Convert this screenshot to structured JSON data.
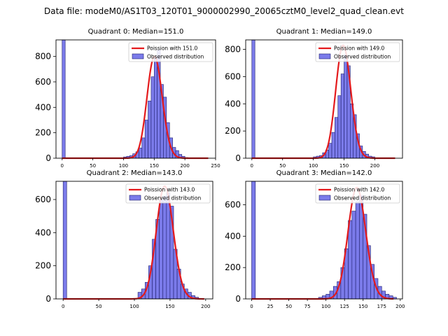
{
  "figure_title": "Data file: modeM0/AS1T03_120T01_9000002990_20065cztM0_level2_quad_clean.evt",
  "colors": {
    "bar_fill": "#7b7bea",
    "bar_edge": "#1f1f6e",
    "poisson_line": "#e41a1c",
    "axis": "#000000"
  },
  "legend_labels": {
    "observed": "Observed distribution"
  },
  "chart_data": [
    {
      "type": "bar+line",
      "title": "Quadrant 0: Median=151.0",
      "poisson_label": "Poission with 151.0",
      "poisson_lambda": 151.0,
      "poisson_scale": 800,
      "xlim": [
        -10,
        250
      ],
      "ylim": [
        0,
        930
      ],
      "xticks": [
        0,
        50,
        100,
        150,
        200,
        250
      ],
      "yticks": [
        0,
        200,
        400,
        600,
        800
      ],
      "bin_width": 5,
      "bins": [
        [
          0,
          930
        ],
        [
          100,
          10
        ],
        [
          105,
          15
        ],
        [
          110,
          20
        ],
        [
          115,
          35
        ],
        [
          120,
          50
        ],
        [
          125,
          80
        ],
        [
          130,
          160
        ],
        [
          135,
          300
        ],
        [
          140,
          450
        ],
        [
          145,
          640
        ],
        [
          150,
          800
        ],
        [
          155,
          850
        ],
        [
          160,
          580
        ],
        [
          165,
          480
        ],
        [
          170,
          280
        ],
        [
          175,
          160
        ],
        [
          180,
          85
        ],
        [
          185,
          60
        ],
        [
          190,
          30
        ],
        [
          195,
          15
        ],
        [
          200,
          5
        ]
      ]
    },
    {
      "type": "bar+line",
      "title": "Quadrant 1: Median=149.0",
      "poisson_label": "Poission with 149.0",
      "poisson_lambda": 149.0,
      "poisson_scale": 830,
      "xlim": [
        -10,
        245
      ],
      "ylim": [
        0,
        870
      ],
      "xticks": [
        0,
        50,
        100,
        150,
        200
      ],
      "yticks": [
        0,
        200,
        400,
        600,
        800
      ],
      "bin_width": 5,
      "bins": [
        [
          0,
          870
        ],
        [
          100,
          10
        ],
        [
          105,
          15
        ],
        [
          110,
          20
        ],
        [
          115,
          40
        ],
        [
          120,
          60
        ],
        [
          125,
          110
        ],
        [
          130,
          190
        ],
        [
          135,
          300
        ],
        [
          140,
          460
        ],
        [
          145,
          620
        ],
        [
          150,
          760
        ],
        [
          155,
          680
        ],
        [
          160,
          400
        ],
        [
          165,
          320
        ],
        [
          170,
          180
        ],
        [
          175,
          90
        ],
        [
          180,
          50
        ],
        [
          185,
          30
        ],
        [
          190,
          15
        ],
        [
          195,
          10
        ]
      ]
    },
    {
      "type": "bar+line",
      "title": "Quadrant 2: Median=143.0",
      "poisson_label": "Poission with 143.0",
      "poisson_lambda": 143.0,
      "poisson_scale": 680,
      "xlim": [
        -10,
        210
      ],
      "ylim": [
        0,
        710
      ],
      "xticks": [
        0,
        50,
        100,
        150,
        200
      ],
      "yticks": [
        0,
        200,
        400,
        600
      ],
      "bin_width": 5,
      "bins": [
        [
          0,
          710
        ],
        [
          105,
          40
        ],
        [
          110,
          60
        ],
        [
          115,
          100
        ],
        [
          120,
          200
        ],
        [
          125,
          360
        ],
        [
          130,
          480
        ],
        [
          135,
          600
        ],
        [
          140,
          620
        ],
        [
          145,
          640
        ],
        [
          150,
          560
        ],
        [
          155,
          300
        ],
        [
          160,
          180
        ],
        [
          165,
          90
        ],
        [
          170,
          60
        ],
        [
          175,
          40
        ],
        [
          180,
          20
        ],
        [
          185,
          10
        ]
      ]
    },
    {
      "type": "bar+line",
      "title": "Quadrant 3: Median=142.0",
      "poisson_label": "Poission with 142.0",
      "poisson_lambda": 142.0,
      "poisson_scale": 710,
      "xlim": [
        -8,
        203
      ],
      "ylim": [
        0,
        750
      ],
      "xticks": [
        0,
        25,
        50,
        75,
        100,
        125,
        150,
        175,
        200
      ],
      "yticks": [
        0,
        200,
        400,
        600
      ],
      "bin_width": 5,
      "bins": [
        [
          0,
          750
        ],
        [
          90,
          10
        ],
        [
          95,
          20
        ],
        [
          100,
          30
        ],
        [
          105,
          50
        ],
        [
          110,
          80
        ],
        [
          115,
          110
        ],
        [
          120,
          200
        ],
        [
          125,
          320
        ],
        [
          130,
          500
        ],
        [
          135,
          560
        ],
        [
          140,
          620
        ],
        [
          145,
          660
        ],
        [
          150,
          540
        ],
        [
          155,
          340
        ],
        [
          160,
          220
        ],
        [
          165,
          130
        ],
        [
          170,
          80
        ],
        [
          175,
          50
        ],
        [
          180,
          30
        ],
        [
          185,
          20
        ],
        [
          190,
          10
        ]
      ]
    }
  ]
}
